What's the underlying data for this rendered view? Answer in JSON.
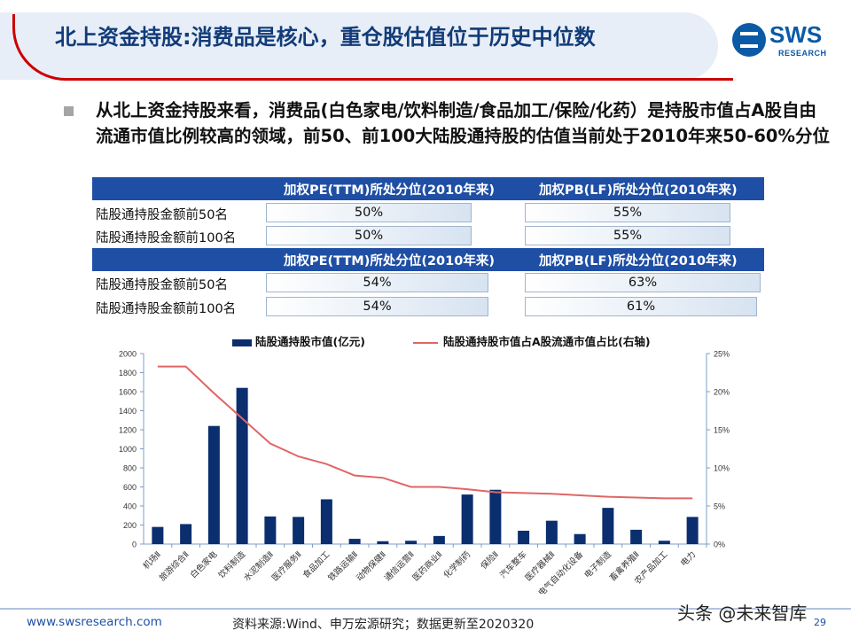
{
  "header": {
    "title": "北上资金持股:消费品是核心，重仓股估值位于历史中位数",
    "logo_brand": "SWS",
    "logo_sub": "RESEARCH"
  },
  "bullet": "从北上资金持股来看，消费品(白色家电/饮料制造/食品加工/保险/化药）是持股市值占A股自由流通市值比例较高的领域，前50、前100大陆股通持股的估值当前处于2010年来50-60%分位",
  "tables": [
    {
      "col_pe": "加权PE(TTM)所处分位(2010年来)",
      "col_pb": "加权PB(LF)所处分位(2010年来)",
      "rows": [
        {
          "label": "陆股通持股金额前50名",
          "pe": "50%",
          "pb": "55%",
          "pe_fill": 0.5,
          "pb_fill": 0.55
        },
        {
          "label": "陆股通持股金额前100名",
          "pe": "50%",
          "pb": "55%",
          "pe_fill": 0.5,
          "pb_fill": 0.55
        }
      ]
    },
    {
      "col_pe": "加权PE(TTM)所处分位(2010年来)",
      "col_pb": "加权PB(LF)所处分位(2010年来)",
      "rows": [
        {
          "label": "陆股通持股金额前50名",
          "pe": "54%",
          "pb": "63%",
          "pe_fill": 0.54,
          "pb_fill": 0.63
        },
        {
          "label": "陆股通持股金额前100名",
          "pe": "54%",
          "pb": "61%",
          "pe_fill": 0.54,
          "pb_fill": 0.61
        }
      ]
    }
  ],
  "chart_data": {
    "type": "bar",
    "categories": [
      "机场Ⅱ",
      "旅游综合Ⅱ",
      "白色家电",
      "饮料制造",
      "水泥制造Ⅱ",
      "医疗服务Ⅱ",
      "食品加工",
      "铁路运输Ⅱ",
      "动物保健Ⅱ",
      "通信运营Ⅱ",
      "医药商业Ⅱ",
      "化学制药",
      "保险Ⅱ",
      "汽车整车",
      "医疗器械Ⅱ",
      "电气自动化设备",
      "电子制造",
      "畜禽养殖Ⅱ",
      "农产品加工",
      "电力"
    ],
    "series": [
      {
        "name": "陆股通持股市值(亿元)",
        "type": "bar",
        "axis": "left",
        "color": "#0b2e6e",
        "values": [
          180,
          210,
          1240,
          1640,
          290,
          285,
          470,
          55,
          30,
          35,
          85,
          520,
          570,
          140,
          245,
          105,
          380,
          150,
          35,
          285
        ]
      },
      {
        "name": "陆股通持股市值占A股流通市值占比(右轴)",
        "type": "line",
        "axis": "right",
        "color": "#e06666",
        "values": [
          23.3,
          23.3,
          19.8,
          16.5,
          13.2,
          11.5,
          10.5,
          9.0,
          8.7,
          7.5,
          7.5,
          7.2,
          6.8,
          6.7,
          6.6,
          6.4,
          6.2,
          6.1,
          6.0,
          6.0
        ]
      }
    ],
    "y_left": {
      "min": 0,
      "max": 2000,
      "ticks": [
        "0",
        "200",
        "400",
        "600",
        "800",
        "1000",
        "1200",
        "1400",
        "1600",
        "1800",
        "2000"
      ]
    },
    "y_right": {
      "min": 0,
      "max": 25,
      "ticks": [
        "0%",
        "5%",
        "10%",
        "15%",
        "20%",
        "25%"
      ]
    },
    "legend": "top-center",
    "grid": false
  },
  "footer": {
    "site": "www.swsresearch.com",
    "source": "资料来源:Wind、申万宏源研究；数据更新至2020320",
    "page": "29",
    "watermark": "头条 @未来智库"
  }
}
